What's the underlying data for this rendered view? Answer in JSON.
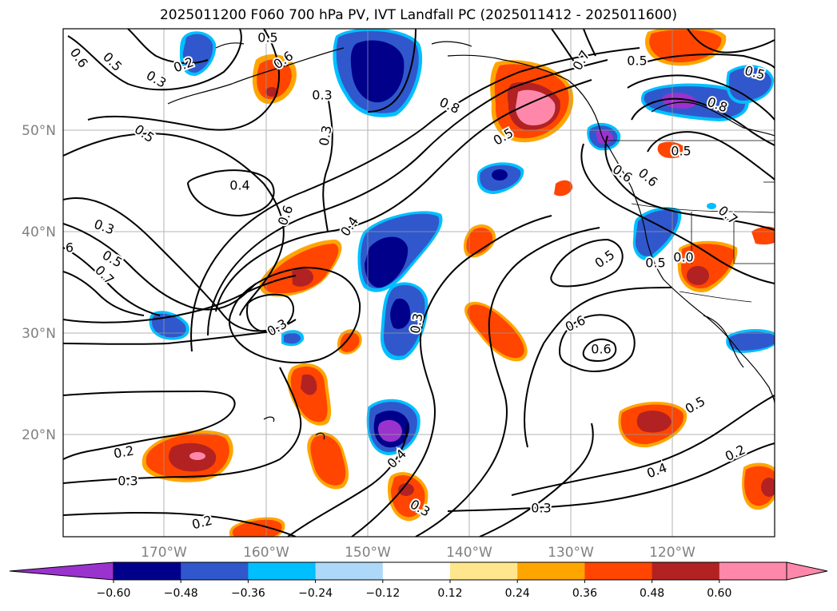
{
  "title": "2025011200 F060 700 hPa PV, IVT Landfall PC (2025011412 - 2025011600)",
  "lat_labels": [
    "50°N",
    "40°N",
    "30°N",
    "20°N"
  ],
  "lon_labels": [
    "170°W",
    "160°W",
    "150°W",
    "140°W",
    "130°W",
    "120°W"
  ],
  "colorbar": {
    "ticks": [
      "−0.60",
      "−0.48",
      "−0.36",
      "−0.24",
      "−0.12",
      "0.12",
      "0.24",
      "0.36",
      "0.48",
      "0.60"
    ],
    "colors": [
      "#9a32cd",
      "#00008b",
      "#3058cc",
      "#00bfff",
      "#add8f7",
      "#ffffff",
      "#ffe68c",
      "#ffa500",
      "#ff4500",
      "#b22222",
      "#ff88aa",
      "#ff88aa"
    ],
    "extend_min_color": "#9a32cd",
    "extend_max_color": "#ff88aa"
  },
  "contour_labels": [
    {
      "text": "0.6"
    },
    {
      "text": "0.5"
    },
    {
      "text": "0.2"
    },
    {
      "text": "0.3"
    },
    {
      "text": "0.5"
    },
    {
      "text": "0.6"
    },
    {
      "text": "0.3"
    },
    {
      "text": "0.3"
    },
    {
      "text": "0.5"
    },
    {
      "text": "0.8"
    },
    {
      "text": "0.7"
    },
    {
      "text": "0.5"
    },
    {
      "text": "0.5"
    },
    {
      "text": "0.8"
    },
    {
      "text": "0.5"
    },
    {
      "text": "0.5"
    },
    {
      "text": "0.4"
    },
    {
      "text": "0.6"
    },
    {
      "text": "0.3"
    },
    {
      "text": "0.5"
    },
    {
      "text": "0.7"
    },
    {
      "text": "6"
    },
    {
      "text": "0.4"
    },
    {
      "text": "0.6"
    },
    {
      "text": "0.3"
    },
    {
      "text": "0.3"
    },
    {
      "text": "0.5"
    },
    {
      "text": "0.6"
    },
    {
      "text": "0.6"
    },
    {
      "text": "0.0"
    },
    {
      "text": "0.6"
    },
    {
      "text": "0.7"
    },
    {
      "text": "0.5"
    },
    {
      "text": "0.2"
    },
    {
      "text": "0.3"
    },
    {
      "text": "0.4"
    },
    {
      "text": "0.2"
    },
    {
      "text": "0.3"
    },
    {
      "text": "0.4"
    },
    {
      "text": "0.2"
    },
    {
      "text": "0.3"
    },
    {
      "text": "0.5"
    }
  ]
}
